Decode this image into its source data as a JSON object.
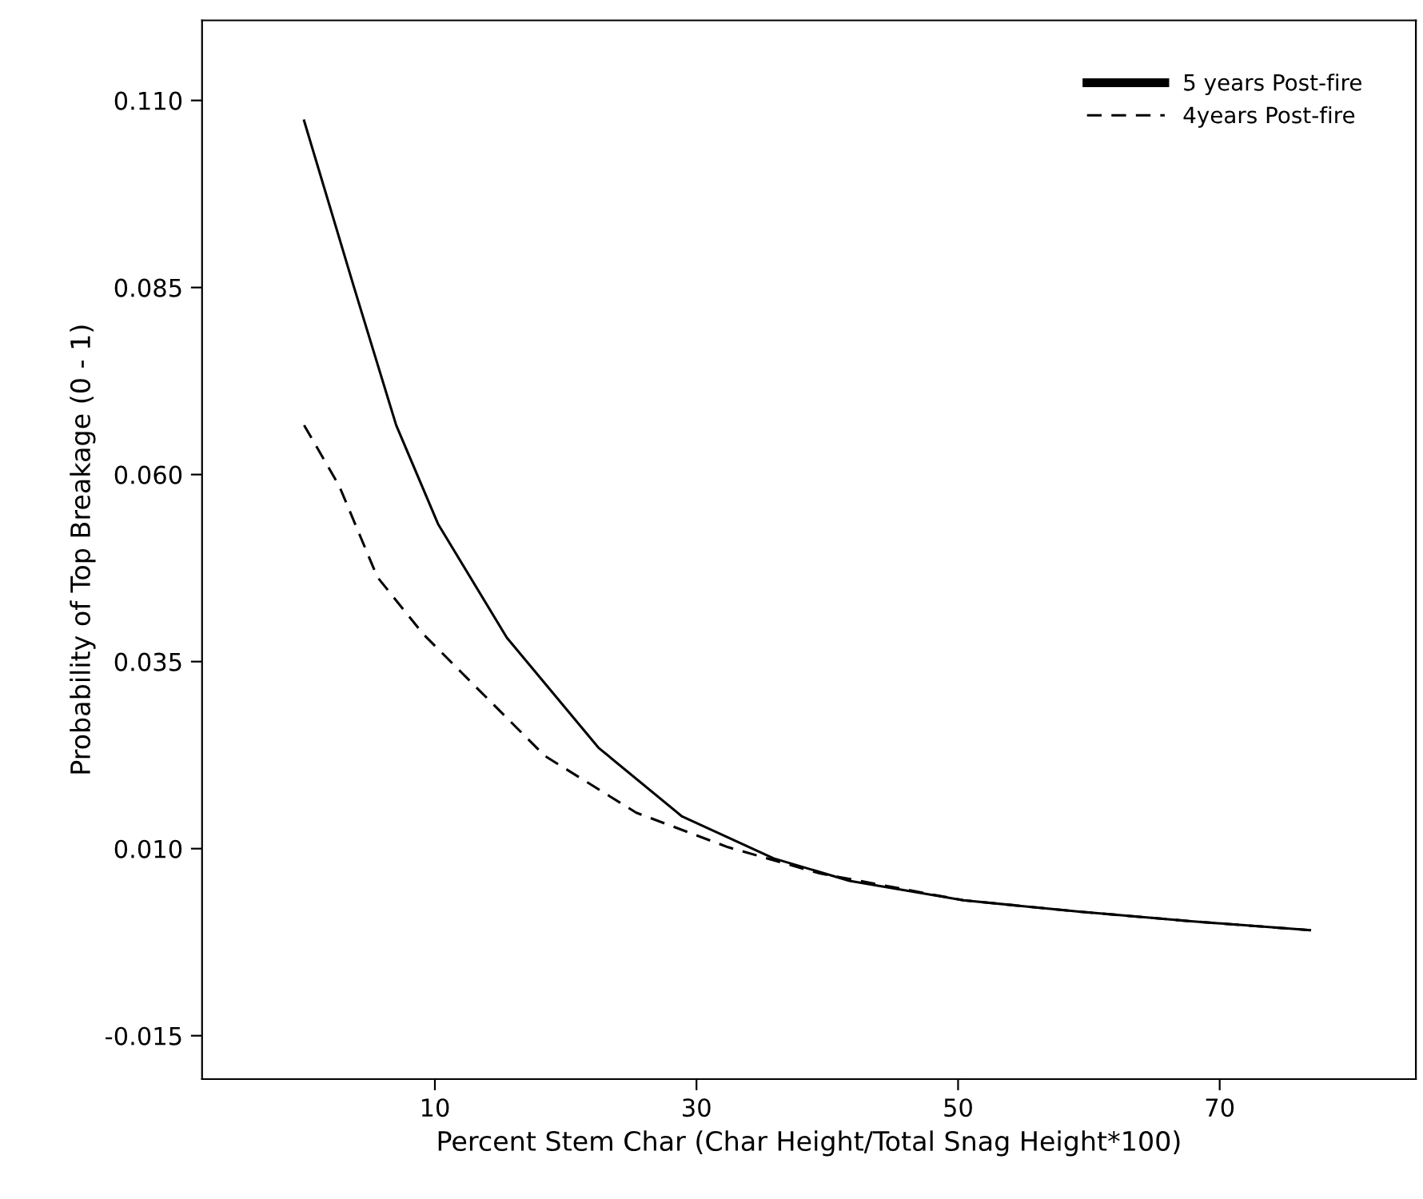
{
  "chart_data": {
    "type": "line",
    "xlabel": "Percent Stem Char (Char Height/Total Snag Height*100)",
    "ylabel": "Probability of Top Breakage (0 - 1)",
    "xlim": [
      -7.8,
      85
    ],
    "xticks": [
      10,
      30,
      50,
      70
    ],
    "ylim": [
      -0.0208,
      0.1207
    ],
    "yticks": [
      {
        "value": 0.11,
        "label": "0.110"
      },
      {
        "value": 0.085,
        "label": "0.085"
      },
      {
        "value": 0.06,
        "label": "0.060"
      },
      {
        "value": 0.035,
        "label": "0.035"
      },
      {
        "value": 0.01,
        "label": "0.010"
      },
      {
        "value": -0.015,
        "label": "-0.015"
      }
    ],
    "grid": false,
    "legend": "top right",
    "series": [
      {
        "name": "5 years Post-fire",
        "color": "#000000",
        "line_style": "solid",
        "x": [
          0,
          3.84,
          7.04,
          10.24,
          15.5,
          22.5,
          28.9,
          35.9,
          41.7,
          50.4,
          59.1,
          67.8,
          76.9
        ],
        "values": [
          0.1073,
          0.0849,
          0.0666,
          0.0534,
          0.0382,
          0.0235,
          0.0143,
          0.0087,
          0.0057,
          0.0031,
          0.0016,
          0.0003,
          -0.0009
        ]
      },
      {
        "name": "4years Post-fire",
        "color": "#000000",
        "line_style": "dashed",
        "x": [
          0,
          2.68,
          5.6,
          9.1,
          12.0,
          18.4,
          25.4,
          32.4,
          39.4,
          50.4,
          59.1,
          67.8,
          76.9
        ],
        "values": [
          0.0666,
          0.0585,
          0.0463,
          0.0387,
          0.0336,
          0.0224,
          0.0148,
          0.0102,
          0.0067,
          0.0031,
          0.0016,
          0.0003,
          -0.0009
        ]
      }
    ]
  }
}
